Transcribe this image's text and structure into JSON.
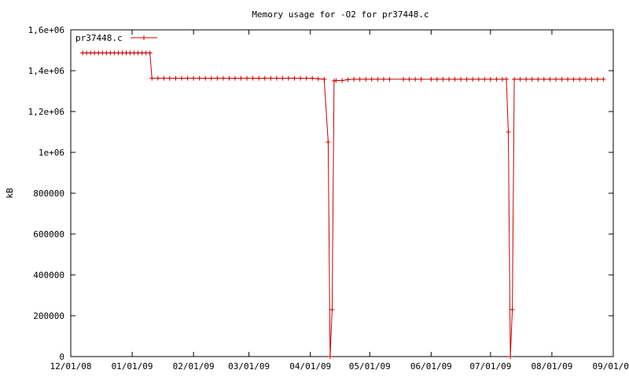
{
  "chart_data": {
    "type": "line",
    "title": "Memory usage for -O2 for pr37448.c",
    "xlabel": "",
    "ylabel": "kB",
    "xlim": [
      "2008-12-01",
      "2009-09-01"
    ],
    "ylim": [
      0,
      1600000
    ],
    "x_ticks": [
      "2008-12-01",
      "2009-01-01",
      "2009-02-01",
      "2009-03-01",
      "2009-04-01",
      "2009-05-01",
      "2009-06-01",
      "2009-07-01",
      "2009-08-01",
      "2009-09-01"
    ],
    "x_tick_labels": [
      "12/01/08",
      "01/01/09",
      "02/01/09",
      "03/01/09",
      "04/01/09",
      "05/01/09",
      "06/01/09",
      "07/01/09",
      "08/01/09",
      "09/01/09"
    ],
    "y_ticks": [
      0,
      200000,
      400000,
      600000,
      800000,
      1000000,
      1200000,
      1400000,
      1600000
    ],
    "y_tick_labels": [
      "0",
      "200000",
      "400000",
      "600000",
      "800000",
      "1e+06",
      "1,2e+06",
      "1,4e+06",
      "1,6e+06"
    ],
    "legend": {
      "placement": "top-left"
    },
    "grid": false,
    "series": [
      {
        "name": "pr37448.c",
        "color": "#cc0000",
        "marker": "plus",
        "x": [
          "2008-12-07",
          "2008-12-09",
          "2008-12-11",
          "2008-12-13",
          "2008-12-15",
          "2008-12-17",
          "2008-12-19",
          "2008-12-21",
          "2008-12-23",
          "2008-12-25",
          "2008-12-27",
          "2008-12-29",
          "2008-12-31",
          "2009-01-02",
          "2009-01-04",
          "2009-01-06",
          "2009-01-08",
          "2009-01-10",
          "2009-01-11",
          "2009-01-14",
          "2009-01-17",
          "2009-01-20",
          "2009-01-23",
          "2009-01-26",
          "2009-01-29",
          "2009-02-01",
          "2009-02-04",
          "2009-02-07",
          "2009-02-10",
          "2009-02-13",
          "2009-02-16",
          "2009-02-19",
          "2009-02-22",
          "2009-02-25",
          "2009-02-28",
          "2009-03-03",
          "2009-03-06",
          "2009-03-09",
          "2009-03-12",
          "2009-03-15",
          "2009-03-18",
          "2009-03-21",
          "2009-03-24",
          "2009-03-27",
          "2009-03-30",
          "2009-04-02",
          "2009-04-05",
          "2009-04-08",
          "2009-04-10",
          "2009-04-11",
          "2009-04-12",
          "2009-04-13",
          "2009-04-14",
          "2009-04-17",
          "2009-04-20",
          "2009-04-23",
          "2009-04-26",
          "2009-04-29",
          "2009-05-02",
          "2009-05-05",
          "2009-05-08",
          "2009-05-11",
          "2009-05-18",
          "2009-05-21",
          "2009-05-24",
          "2009-05-27",
          "2009-06-01",
          "2009-06-04",
          "2009-06-07",
          "2009-06-10",
          "2009-06-13",
          "2009-06-16",
          "2009-06-19",
          "2009-06-22",
          "2009-06-25",
          "2009-06-28",
          "2009-07-01",
          "2009-07-04",
          "2009-07-07",
          "2009-07-09",
          "2009-07-10",
          "2009-07-11",
          "2009-07-12",
          "2009-07-13",
          "2009-07-16",
          "2009-07-19",
          "2009-07-22",
          "2009-07-25",
          "2009-07-28",
          "2009-07-31",
          "2009-08-03",
          "2009-08-06",
          "2009-08-09",
          "2009-08-12",
          "2009-08-15",
          "2009-08-18",
          "2009-08-21",
          "2009-08-24",
          "2009-08-27"
        ],
        "y": [
          1487000,
          1487000,
          1487000,
          1487000,
          1487000,
          1487000,
          1487000,
          1487000,
          1487000,
          1487000,
          1487000,
          1487000,
          1487000,
          1487000,
          1487000,
          1487000,
          1487000,
          1487000,
          1363000,
          1363000,
          1363000,
          1363000,
          1363000,
          1363000,
          1363000,
          1363000,
          1363000,
          1363000,
          1363000,
          1363000,
          1363000,
          1363000,
          1363000,
          1363000,
          1363000,
          1363000,
          1363000,
          1363000,
          1363000,
          1363000,
          1363000,
          1363000,
          1363000,
          1363000,
          1363000,
          1363000,
          1360000,
          1358000,
          1050000,
          0,
          230000,
          1350000,
          1352000,
          1352000,
          1356000,
          1358000,
          1358000,
          1358000,
          1358000,
          1358000,
          1358000,
          1358000,
          1358000,
          1358000,
          1358000,
          1358000,
          1358000,
          1358000,
          1358000,
          1358000,
          1358000,
          1358000,
          1358000,
          1358000,
          1358000,
          1358000,
          1358000,
          1358000,
          1358000,
          1358000,
          1100000,
          0,
          230000,
          1358000,
          1358000,
          1358000,
          1358000,
          1358000,
          1358000,
          1358000,
          1358000,
          1358000,
          1358000,
          1358000,
          1358000,
          1358000,
          1358000,
          1358000,
          1358000
        ]
      }
    ]
  }
}
